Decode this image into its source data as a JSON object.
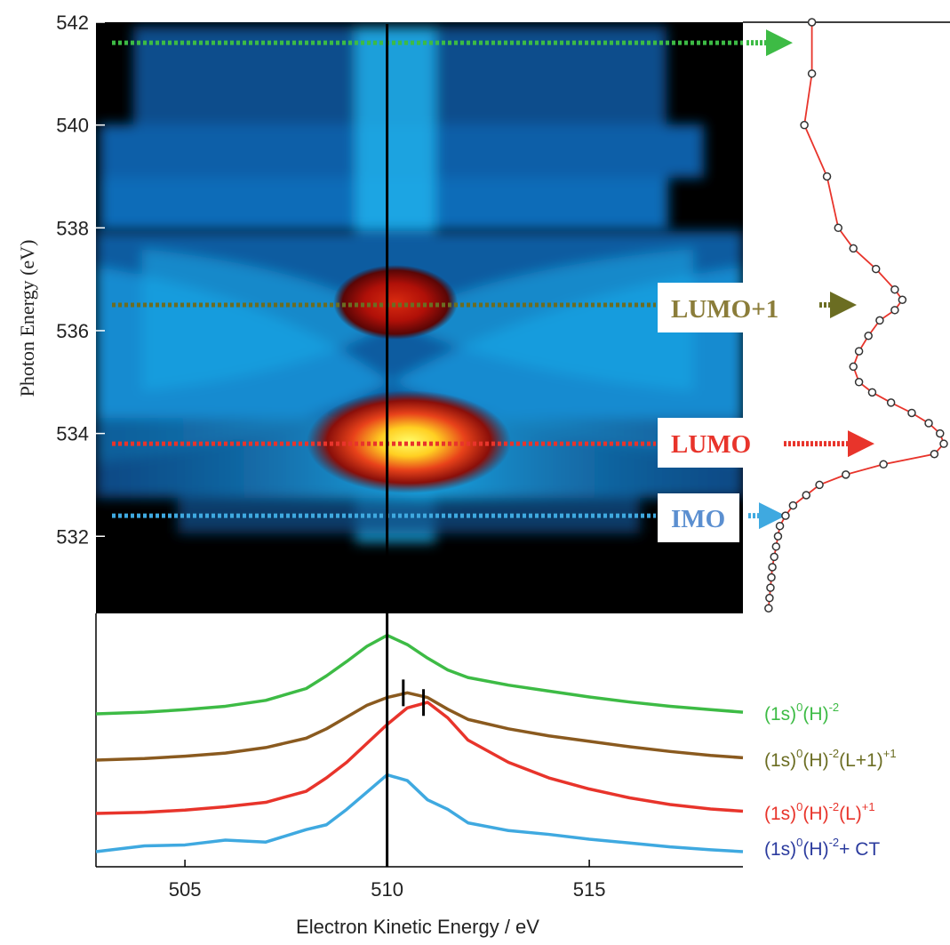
{
  "chart_data": [
    {
      "type": "heatmap",
      "xlabel": "",
      "ylabel": "Photon Energy  (eV)",
      "xlim": [
        502.8,
        518.8
      ],
      "ylim": [
        530.5,
        542.0
      ],
      "yticks": [
        "532",
        "534",
        "536",
        "538",
        "540",
        "542"
      ],
      "vertical_marker_x": 510,
      "spots": [
        {
          "x": 510.6,
          "y": 533.8,
          "intensity": 1.0
        },
        {
          "x": 510.4,
          "y": 536.5,
          "intensity": 0.72
        }
      ],
      "resonances": [
        {
          "name": "LUMO+1",
          "photon_energy": 536.5,
          "color": "#6b6d22"
        },
        {
          "name": "LUMO",
          "photon_energy": 533.8,
          "color": "#e8342b"
        },
        {
          "name": "IMO",
          "photon_energy": 532.4,
          "color": "#3fa9e0"
        },
        {
          "name": "",
          "photon_energy": 541.6,
          "color": "#3dbb45"
        }
      ]
    },
    {
      "type": "line",
      "title": "",
      "xlabel": "",
      "ylabel": "",
      "axis": "photon energy (shared with heatmap y axis)",
      "color": "#e8342b",
      "photon_energy": [
        542.0,
        541.0,
        540.0,
        539.0,
        538.0,
        537.6,
        537.2,
        536.8,
        536.6,
        536.4,
        536.2,
        535.9,
        535.6,
        535.3,
        535.0,
        534.8,
        534.6,
        534.4,
        534.2,
        534.0,
        533.8,
        533.6,
        533.4,
        533.2,
        533.0,
        532.8,
        532.6,
        532.4,
        532.2,
        532.0,
        531.8,
        531.6,
        531.4,
        531.2,
        531.0,
        530.8,
        530.6
      ],
      "intensity": [
        0.3,
        0.3,
        0.26,
        0.38,
        0.44,
        0.52,
        0.64,
        0.74,
        0.78,
        0.74,
        0.66,
        0.6,
        0.55,
        0.52,
        0.55,
        0.62,
        0.72,
        0.83,
        0.92,
        0.98,
        1.0,
        0.95,
        0.68,
        0.48,
        0.34,
        0.27,
        0.2,
        0.16,
        0.13,
        0.12,
        0.11,
        0.1,
        0.09,
        0.085,
        0.08,
        0.075,
        0.07
      ]
    },
    {
      "type": "line",
      "xlabel": "Electron Kinetic Energy / eV",
      "ylabel": "",
      "xlim": [
        502.8,
        518.8
      ],
      "xticks": [
        "505",
        "510",
        "515"
      ],
      "x": [
        502.8,
        504,
        505,
        506,
        507,
        508,
        508.5,
        509,
        509.5,
        510,
        510.5,
        511,
        511.5,
        512,
        513,
        514,
        515,
        516,
        517,
        518,
        518.8
      ],
      "series": [
        {
          "name": "(1s)0(H)-2",
          "label_parts": [
            "(1s)",
            "0",
            "(H)",
            "-2",
            ""
          ],
          "color": "#3dbb45",
          "values": [
            0.0,
            0.02,
            0.05,
            0.09,
            0.16,
            0.3,
            0.45,
            0.62,
            0.8,
            0.93,
            0.82,
            0.66,
            0.52,
            0.43,
            0.34,
            0.27,
            0.2,
            0.14,
            0.09,
            0.05,
            0.02
          ]
        },
        {
          "name": "(1s)0(H)-2(L+1)+1",
          "label_parts": [
            "(1s)",
            "0",
            "(H)",
            "-2",
            "(L+1)",
            "+1",
            ""
          ],
          "color": "#8a5a1f",
          "values": [
            0.0,
            0.02,
            0.05,
            0.09,
            0.16,
            0.28,
            0.4,
            0.55,
            0.7,
            0.8,
            0.86,
            0.8,
            0.65,
            0.52,
            0.4,
            0.31,
            0.24,
            0.17,
            0.11,
            0.06,
            0.03
          ],
          "peak_marker_x": 510.4
        },
        {
          "name": "(1s)0(H)-2(L)+1",
          "label_parts": [
            "(1s)",
            "0",
            "(H)",
            "-2",
            "(L)",
            "+1",
            ""
          ],
          "color": "#e8342b",
          "values": [
            0.0,
            0.01,
            0.03,
            0.06,
            0.1,
            0.2,
            0.32,
            0.46,
            0.63,
            0.8,
            0.95,
            1.0,
            0.86,
            0.66,
            0.46,
            0.32,
            0.22,
            0.14,
            0.08,
            0.04,
            0.02
          ],
          "peak_marker_x": 510.9
        },
        {
          "name": "(1s)0(H)-2+ CT",
          "label_parts": [
            "(1s)",
            "0",
            "(H)",
            "-2",
            "+ CT"
          ],
          "color": "#3fa9e0",
          "values": [
            0.0,
            0.06,
            0.07,
            0.12,
            0.1,
            0.23,
            0.28,
            0.44,
            0.62,
            0.8,
            0.74,
            0.54,
            0.44,
            0.3,
            0.22,
            0.18,
            0.13,
            0.09,
            0.05,
            0.02,
            0.0
          ]
        }
      ]
    }
  ]
}
